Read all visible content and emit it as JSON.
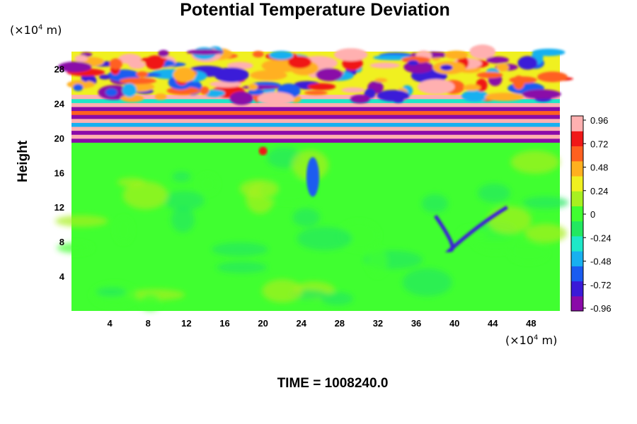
{
  "chart_data": {
    "type": "heatmap",
    "title": "Potential Temperature Deviation",
    "ylabel": "Height",
    "xlabel": "",
    "x_unit": {
      "prefix": "(×10",
      "exp": "4",
      "suffix": " m)"
    },
    "y_unit": {
      "prefix": "(×10",
      "exp": "4",
      "suffix": " m)"
    },
    "xticks": [
      4,
      8,
      12,
      16,
      20,
      24,
      28,
      32,
      36,
      40,
      44,
      48
    ],
    "yticks": [
      4,
      8,
      12,
      16,
      20,
      24,
      28
    ],
    "xlim": [
      0,
      51
    ],
    "ylim": [
      0,
      30
    ],
    "colorbar": {
      "ticks": [
        "0.96",
        "0.72",
        "0.48",
        "0.24",
        "0",
        "-0.24",
        "-0.48",
        "-0.72",
        "-0.96"
      ],
      "range": [
        -0.96,
        0.96
      ],
      "colors": [
        "#8a0aa8",
        "#3a1ad8",
        "#1a5cf0",
        "#18b0f0",
        "#1ee8c8",
        "#22e860",
        "#40ff30",
        "#a8f020",
        "#f0f020",
        "#ffb020",
        "#ff6020",
        "#f01818",
        "#ffb0b0"
      ]
    },
    "regions": {
      "background_level": 0.05,
      "upper_band_bottom": 19.5,
      "upper_band_top": 30,
      "features": [
        {
          "label": "cold plume",
          "x": 25.2,
          "y": 15.5,
          "value": -0.6
        },
        {
          "label": "cold hook",
          "x": 39.5,
          "y": 8.0,
          "value": -0.8
        },
        {
          "label": "warm spot",
          "x": 20.0,
          "y": 18.5,
          "value": 0.8
        }
      ]
    },
    "time": "TIME = 1008240.0"
  }
}
